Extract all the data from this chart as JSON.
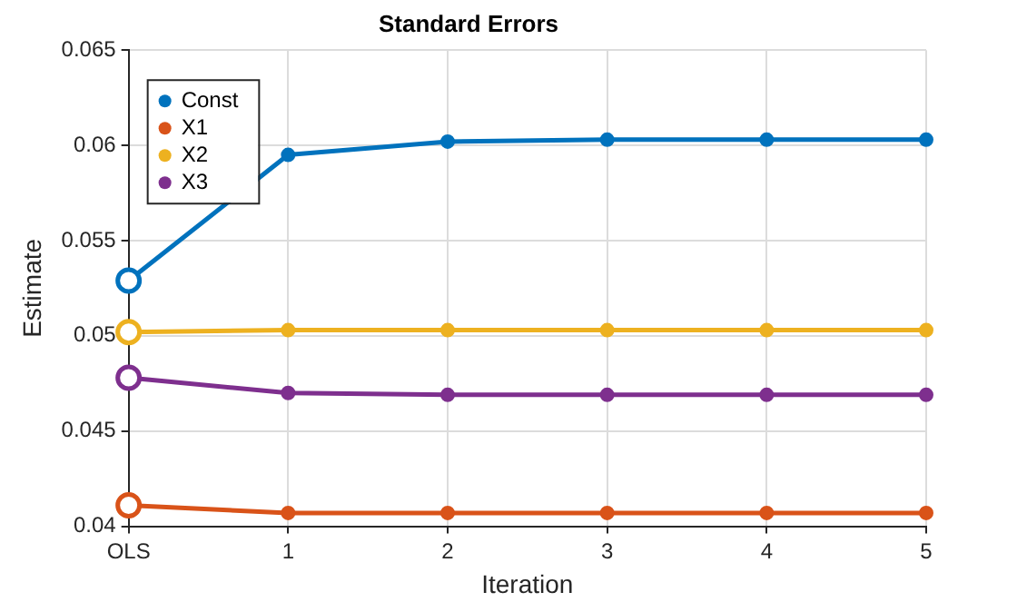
{
  "chart_data": {
    "type": "line",
    "title": "Standard Errors",
    "xlabel": "Iteration",
    "ylabel": "Estimate",
    "categories": [
      "OLS",
      "1",
      "2",
      "3",
      "4",
      "5"
    ],
    "series": [
      {
        "name": "Const",
        "color": "#0072bd",
        "values": [
          0.0529,
          0.0595,
          0.0602,
          0.0603,
          0.0603,
          0.0603
        ]
      },
      {
        "name": "X1",
        "color": "#d95319",
        "values": [
          0.0411,
          0.0407,
          0.0407,
          0.0407,
          0.0407,
          0.0407
        ]
      },
      {
        "name": "X2",
        "color": "#edb120",
        "values": [
          0.0502,
          0.0503,
          0.0503,
          0.0503,
          0.0503,
          0.0503
        ]
      },
      {
        "name": "X3",
        "color": "#7e2f8e",
        "values": [
          0.0478,
          0.047,
          0.0469,
          0.0469,
          0.0469,
          0.0469
        ]
      }
    ],
    "ylim": [
      0.04,
      0.065
    ],
    "yticks": [
      0.04,
      0.045,
      0.05,
      0.055,
      0.06,
      0.065
    ],
    "grid": true,
    "legend": "top left",
    "marker": "circle",
    "line_style": "solid"
  }
}
